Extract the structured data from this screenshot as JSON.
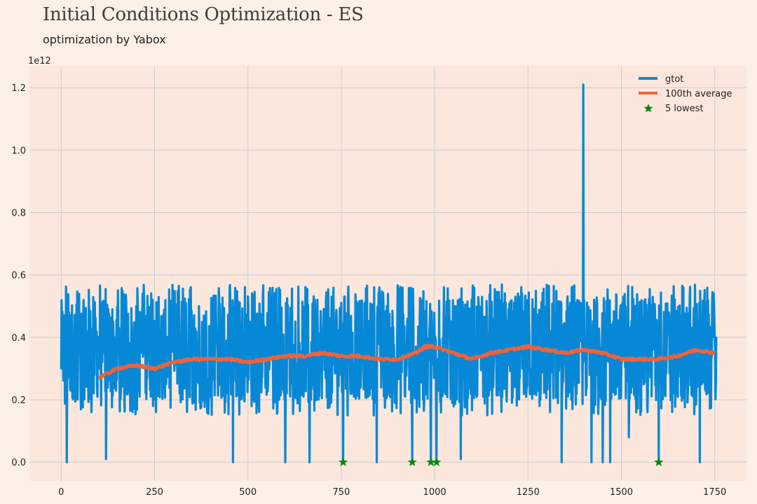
{
  "header": {
    "title": "Initial Conditions Optimization - ES",
    "subtitle": "optimization by Yabox"
  },
  "colors": {
    "background": "#fdf0e6",
    "plot_area": "#fbe7dc",
    "grid": "#cccccc",
    "series_gtot": "#0788d6",
    "series_average": "#f0623a",
    "marker_lowest": "#0a8a0a"
  },
  "chart_data": {
    "type": "line",
    "title": "Initial Conditions Optimization - ES",
    "subtitle": "optimization by Yabox",
    "xlabel": "",
    "ylabel": "",
    "offset_label": "1e12",
    "xlim": [
      -85,
      1835
    ],
    "ylim": [
      -0.06,
      1.27
    ],
    "xticks": [
      0,
      250,
      500,
      750,
      1000,
      1250,
      1500,
      1750
    ],
    "yticks": [
      0.0,
      0.2,
      0.4,
      0.6,
      0.8,
      1.0,
      1.2
    ],
    "xtick_labels": [
      "0",
      "250",
      "500",
      "750",
      "1000",
      "1250",
      "1500",
      "1750"
    ],
    "ytick_labels": [
      "0.0",
      "0.2",
      "0.4",
      "0.6",
      "0.8",
      "1.0",
      "1.2"
    ],
    "grid": true,
    "legend_position": "top-right",
    "series": [
      {
        "name": "gtot",
        "kind": "noisy-line",
        "n_points": 1755,
        "typical_range": [
          0.15,
          0.55
        ],
        "spikes": [
          {
            "x": 15,
            "y": 0.0
          },
          {
            "x": 120,
            "y": 0.01
          },
          {
            "x": 460,
            "y": 0.0
          },
          {
            "x": 600,
            "y": 0.0
          },
          {
            "x": 665,
            "y": 0.0
          },
          {
            "x": 755,
            "y": 0.0
          },
          {
            "x": 845,
            "y": 0.0
          },
          {
            "x": 940,
            "y": 0.0
          },
          {
            "x": 990,
            "y": 0.0
          },
          {
            "x": 1005,
            "y": 0.0
          },
          {
            "x": 1070,
            "y": 0.01
          },
          {
            "x": 1340,
            "y": 0.0
          },
          {
            "x": 1398,
            "y": 1.21
          },
          {
            "x": 1420,
            "y": 0.0
          },
          {
            "x": 1450,
            "y": 0.0
          },
          {
            "x": 1470,
            "y": 0.0
          },
          {
            "x": 1520,
            "y": 0.08
          },
          {
            "x": 1600,
            "y": 0.0
          },
          {
            "x": 1710,
            "y": 0.0
          }
        ]
      },
      {
        "name": "100th average",
        "x": [
          100,
          150,
          200,
          250,
          300,
          350,
          400,
          450,
          500,
          550,
          600,
          650,
          700,
          750,
          800,
          850,
          900,
          950,
          975,
          1000,
          1050,
          1100,
          1150,
          1200,
          1250,
          1300,
          1350,
          1400,
          1450,
          1500,
          1550,
          1600,
          1650,
          1700,
          1750
        ],
        "y": [
          0.27,
          0.3,
          0.31,
          0.3,
          0.32,
          0.33,
          0.33,
          0.33,
          0.32,
          0.33,
          0.34,
          0.34,
          0.35,
          0.34,
          0.34,
          0.33,
          0.33,
          0.35,
          0.37,
          0.37,
          0.35,
          0.33,
          0.35,
          0.36,
          0.37,
          0.36,
          0.35,
          0.36,
          0.35,
          0.33,
          0.33,
          0.33,
          0.34,
          0.36,
          0.35
        ]
      },
      {
        "name": "5 lowest",
        "x": [
          755,
          940,
          990,
          1005,
          1600
        ],
        "y": [
          0.0,
          0.0,
          0.0,
          0.0,
          0.0
        ]
      }
    ]
  }
}
